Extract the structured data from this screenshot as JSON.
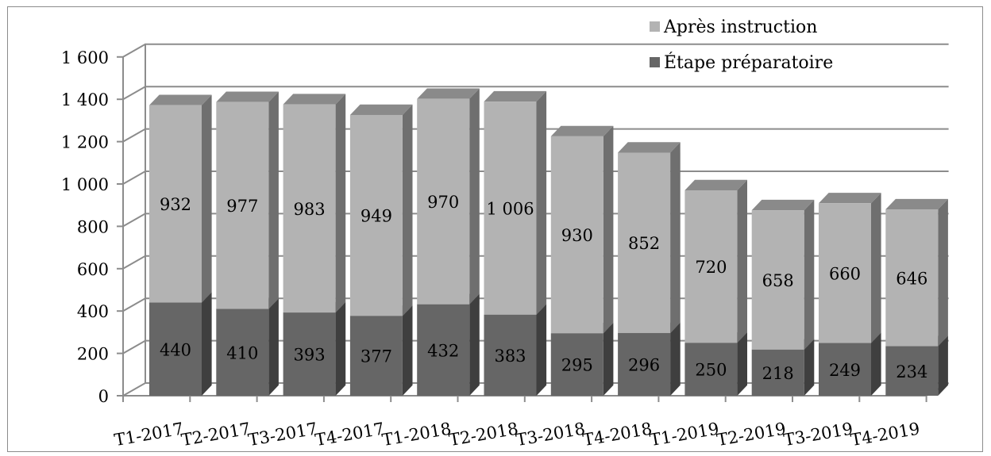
{
  "colors": {
    "prep_front": "#666666",
    "prep_side": "#3f3f3f",
    "prep_top": "#595959",
    "after_front": "#b3b3b3",
    "after_side": "#6f6f6f",
    "after_top": "#8a8a8a",
    "grid": "#8c8c8c",
    "axis": "#8c8c8c"
  },
  "chart_data": {
    "type": "bar",
    "stacked": true,
    "three_d": true,
    "categories": [
      "T1-2017",
      "T2-2017",
      "T3-2017",
      "T4-2017",
      "T1-2018",
      "T2-2018",
      "T3-2018",
      "T4-2018",
      "T1-2019",
      "T2-2019",
      "T3-2019",
      "T4-2019"
    ],
    "series": [
      {
        "name": "Étape préparatoire",
        "values": [
          440,
          410,
          393,
          377,
          432,
          383,
          295,
          296,
          250,
          218,
          249,
          234
        ],
        "labels": [
          "440",
          "410",
          "393",
          "377",
          "432",
          "383",
          "295",
          "296",
          "250",
          "218",
          "249",
          "234"
        ]
      },
      {
        "name": "Après instruction",
        "values": [
          932,
          977,
          983,
          949,
          970,
          1006,
          930,
          852,
          720,
          658,
          660,
          646
        ],
        "labels": [
          "932",
          "977",
          "983",
          "949",
          "970",
          "1 006",
          "930",
          "852",
          "720",
          "658",
          "660",
          "646"
        ]
      }
    ],
    "y_ticks": [
      0,
      200,
      400,
      600,
      800,
      1000,
      1200,
      1400,
      1600
    ],
    "y_tick_labels": [
      "0",
      "200",
      "400",
      "600",
      "800",
      "1 000",
      "1 200",
      "1 400",
      "1 600"
    ],
    "ylim": [
      0,
      1600
    ],
    "grid": true,
    "legend": {
      "position": "top-right",
      "items": [
        "Après instruction",
        "Étape préparatoire"
      ]
    },
    "title": "",
    "xlabel": "",
    "ylabel": ""
  }
}
